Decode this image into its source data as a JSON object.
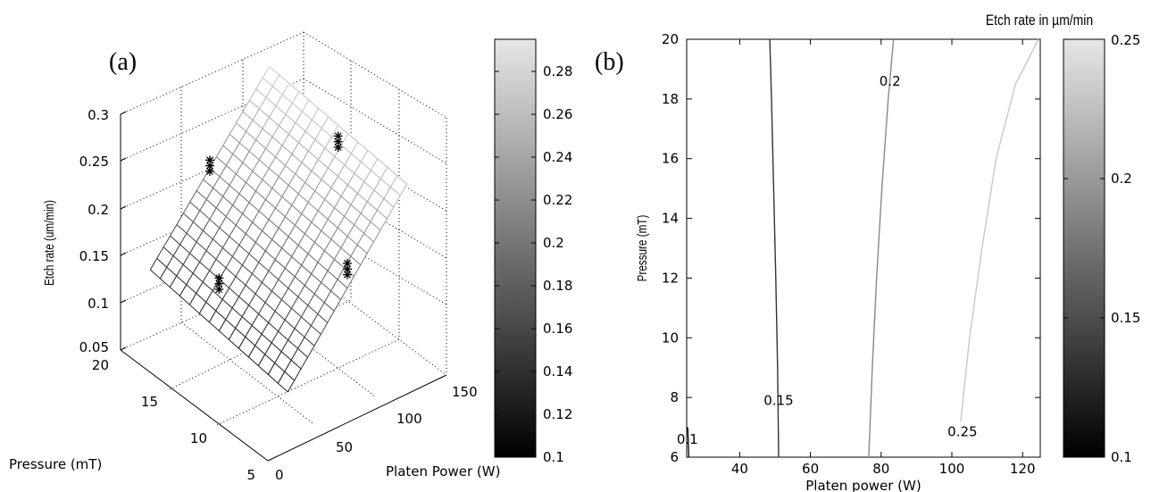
{
  "chart_data": [
    {
      "panel": "(a)",
      "type": "surface",
      "zlabel": "Etch rate (um/min)",
      "xlabel": "Platen Power (W)",
      "ylabel": "Pressure (mT)",
      "x_ticks": [
        "0",
        "50",
        "100",
        "150"
      ],
      "y_ticks": [
        "5",
        "10",
        "15",
        "20"
      ],
      "z_ticks": [
        "0.05",
        "0.1",
        "0.15",
        "0.2",
        "0.25",
        "0.3"
      ],
      "xlim": [
        0,
        150
      ],
      "ylim": [
        5,
        20
      ],
      "zlim": [
        0.05,
        0.3
      ],
      "surface": {
        "x_range": [
          25,
          125
        ],
        "y_range": [
          6,
          20
        ],
        "z_corners": {
          "x25_y6": 0.1,
          "x25_y20": 0.12,
          "x125_y6": 0.26,
          "x125_y20": 0.275
        }
      },
      "markers": [
        {
          "x": 25,
          "y": 13,
          "z": 0.16
        },
        {
          "x": 75,
          "y": 6,
          "z": 0.2
        },
        {
          "x": 75,
          "y": 20,
          "z": 0.2
        },
        {
          "x": 125,
          "y": 13,
          "z": 0.25
        }
      ],
      "colorbar": {
        "ticks": [
          "0.1",
          "0.12",
          "0.14",
          "0.16",
          "0.18",
          "0.2",
          "0.22",
          "0.24",
          "0.26",
          "0.28"
        ],
        "range": [
          0.1,
          0.295
        ]
      }
    },
    {
      "panel": "(b)",
      "type": "contour",
      "xlabel": "Platen power (W)",
      "ylabel": "Pressure (mT)",
      "x_ticks": [
        "40",
        "60",
        "80",
        "100",
        "120"
      ],
      "y_ticks": [
        "6",
        "8",
        "10",
        "12",
        "14",
        "16",
        "18",
        "20"
      ],
      "xlim": [
        25,
        125
      ],
      "ylim": [
        6,
        20
      ],
      "contours": [
        {
          "level": "0.1",
          "points": [
            [
              25.3,
              7.0
            ],
            [
              25.6,
              6.0
            ]
          ],
          "label_at": [
            25.2,
            6.6
          ]
        },
        {
          "level": "0.15",
          "points": [
            [
              51,
              6
            ],
            [
              50.7,
              9
            ],
            [
              50.2,
              12
            ],
            [
              49.6,
              15
            ],
            [
              49,
              18
            ],
            [
              48.5,
              20
            ]
          ],
          "label_at": [
            51,
            7.9
          ]
        },
        {
          "level": "0.2",
          "points": [
            [
              76.5,
              6
            ],
            [
              77.5,
              9
            ],
            [
              78.7,
              12
            ],
            [
              80.2,
              15
            ],
            [
              82,
              18
            ],
            [
              83.5,
              20
            ]
          ],
          "label_at": [
            82.5,
            18.6
          ]
        },
        {
          "level": "0.25",
          "points": [
            [
              102.5,
              7.2
            ],
            [
              105,
              10
            ],
            [
              108.5,
              13
            ],
            [
              112.5,
              16
            ],
            [
              118,
              18.5
            ],
            [
              124.5,
              20
            ]
          ],
          "label_at": [
            103,
            6.85
          ]
        }
      ],
      "colorbar": {
        "title": "Etch rate in µm/min",
        "ticks": [
          "0.1",
          "0.15",
          "0.2",
          "0.25"
        ],
        "range": [
          0.1,
          0.25
        ]
      }
    }
  ]
}
